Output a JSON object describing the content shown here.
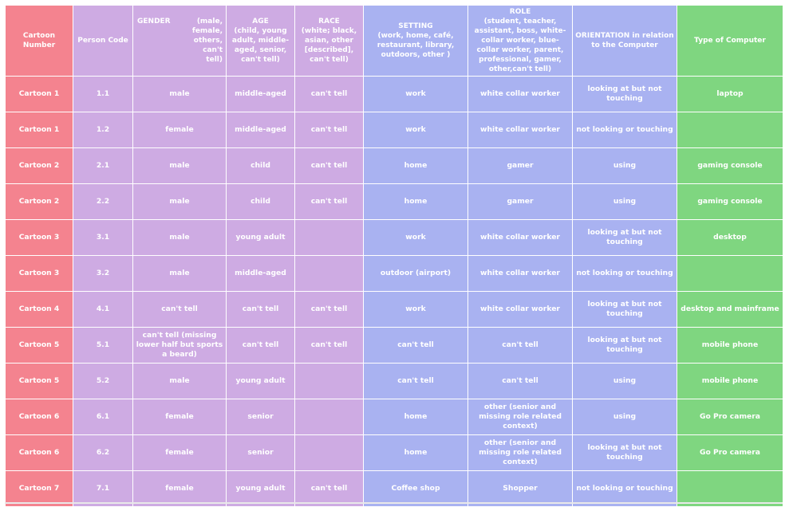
{
  "table": {
    "headers": {
      "cartoon": "Cartoon Number",
      "person": "Person Code",
      "gender": {
        "title": "GENDER",
        "hint": "(male, female, others, can't tell)"
      },
      "age": {
        "title": "AGE",
        "hint": "(child, young adult, middle-aged, senior, can't tell)"
      },
      "race": {
        "title": "RACE",
        "hint": "(white; black, asian, other [described], can't tell)"
      },
      "setting": {
        "title": "SETTING",
        "hint": "(work, home, café, restaurant, library, outdoors, other )"
      },
      "role": {
        "title": "ROLE",
        "hint": "(student, teacher, assistant, boss, white-collar worker, blue-collar worker, parent, professional, gamer, other,can't tell)"
      },
      "orientation": "ORIENTATION in relation to the Computer",
      "computer": "Type of Computer"
    },
    "rows": [
      {
        "cartoon": "Cartoon 1",
        "person": "1.1",
        "gender": "male",
        "age": "middle-aged",
        "race": "can't tell",
        "setting": "work",
        "role": "white collar worker",
        "orientation": "looking at but not touching",
        "computer": "laptop"
      },
      {
        "cartoon": "Cartoon 1",
        "person": "1.2",
        "gender": "female",
        "age": "middle-aged",
        "race": "can't tell",
        "setting": "work",
        "role": "white collar worker",
        "orientation": "not looking or touching",
        "computer": ""
      },
      {
        "cartoon": "Cartoon 2",
        "person": "2.1",
        "gender": "male",
        "age": "child",
        "race": "can't tell",
        "setting": "home",
        "role": "gamer",
        "orientation": "using",
        "computer": "gaming console"
      },
      {
        "cartoon": "Cartoon 2",
        "person": "2.2",
        "gender": "male",
        "age": "child",
        "race": "can't tell",
        "setting": "home",
        "role": "gamer",
        "orientation": "using",
        "computer": "gaming console"
      },
      {
        "cartoon": "Cartoon 3",
        "person": "3.1",
        "gender": "male",
        "age": "young adult",
        "race": "",
        "setting": "work",
        "role": "white collar worker",
        "orientation": "looking at but not touching",
        "computer": "desktop"
      },
      {
        "cartoon": "Cartoon 3",
        "person": "3.2",
        "gender": "male",
        "age": "middle-aged",
        "race": "",
        "setting": "outdoor (airport)",
        "role": "white collar worker",
        "orientation": "not looking or touching",
        "computer": ""
      },
      {
        "cartoon": "Cartoon 4",
        "person": "4.1",
        "gender": "can't tell",
        "age": "can't tell",
        "race": "can't tell",
        "setting": "work",
        "role": "white collar worker",
        "orientation": "looking at but not touching",
        "computer": "desktop and mainframe"
      },
      {
        "cartoon": "Cartoon 5",
        "person": "5.1",
        "gender": "can't tell (missing lower half but sports a beard)",
        "age": "can't tell",
        "race": "can't tell",
        "setting": "can't tell",
        "role": "can't tell",
        "orientation": "looking at but not touching",
        "computer": "mobile phone"
      },
      {
        "cartoon": "Cartoon 5",
        "person": "5.2",
        "gender": "male",
        "age": "young adult",
        "race": "",
        "setting": "can't tell",
        "role": "can't tell",
        "orientation": "using",
        "computer": "mobile phone"
      },
      {
        "cartoon": "Cartoon 6",
        "person": "6.1",
        "gender": "female",
        "age": "senior",
        "race": "",
        "setting": "home",
        "role": "other (senior and missing role related context)",
        "orientation": "using",
        "computer": "Go Pro camera"
      },
      {
        "cartoon": "Cartoon 6",
        "person": "6.2",
        "gender": "female",
        "age": "senior",
        "race": "",
        "setting": "home",
        "role": "other (senior and missing role related context)",
        "orientation": "looking at but not touching",
        "computer": "Go Pro camera"
      },
      {
        "cartoon": "Cartoon 7",
        "person": "7.1",
        "gender": "female",
        "age": "young adult",
        "race": "can't tell",
        "setting": "Coffee shop",
        "role": "Shopper",
        "orientation": "not looking or touching",
        "computer": ""
      }
    ]
  }
}
